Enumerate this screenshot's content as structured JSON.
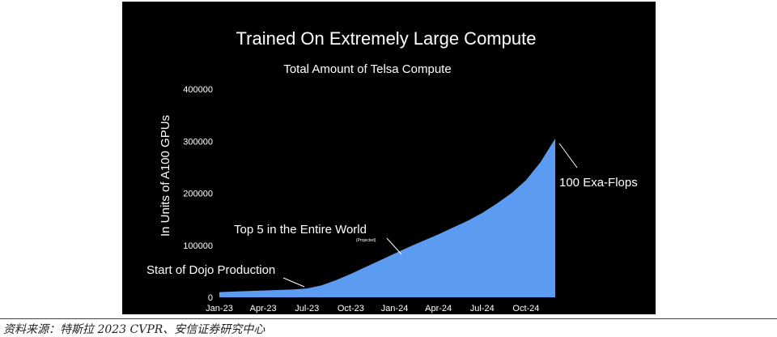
{
  "slide": {
    "heading": "Trained On Extremely Large Compute",
    "background_color": "#000000"
  },
  "chart_data": {
    "type": "area",
    "title": "Total Amount of Telsa Compute",
    "ylabel": "In Units of A100 GPUs",
    "xlabel": "",
    "ylim": [
      0,
      400000
    ],
    "yticks": [
      0,
      100000,
      200000,
      300000,
      400000
    ],
    "ytick_labels": [
      "0",
      "100000",
      "200000",
      "300000",
      "400000"
    ],
    "x_tick_labels": [
      "Jan-23",
      "Apr-23",
      "Jul-23",
      "Oct-23",
      "Jan-24",
      "Apr-24",
      "Jul-24",
      "Oct-24"
    ],
    "x": [
      "Jan-23",
      "Feb-23",
      "Mar-23",
      "Apr-23",
      "May-23",
      "Jun-23",
      "Jul-23",
      "Aug-23",
      "Sep-23",
      "Oct-23",
      "Nov-23",
      "Dec-23",
      "Jan-24",
      "Feb-24",
      "Mar-24",
      "Apr-24",
      "May-24",
      "Jun-24",
      "Jul-24",
      "Aug-24",
      "Sep-24",
      "Oct-24",
      "Nov-24",
      "Dec-24"
    ],
    "values": [
      10000,
      11000,
      12000,
      13000,
      14000,
      15000,
      17000,
      23000,
      33000,
      45000,
      58000,
      71000,
      84000,
      97000,
      109000,
      121000,
      134000,
      147000,
      162000,
      180000,
      200000,
      225000,
      260000,
      305000
    ],
    "fill_color": "#5b9bf2",
    "grid": false,
    "annotations": [
      {
        "text": "Start of Dojo Production",
        "x": "Jul-23"
      },
      {
        "text": "Top 5 in the Entire World",
        "note": "(Projected)",
        "x": "Feb-24"
      },
      {
        "text": "100 Exa-Flops",
        "x": "Dec-24"
      }
    ]
  },
  "source": "资料来源：特斯拉 2023 CVPR、安信证券研究中心"
}
